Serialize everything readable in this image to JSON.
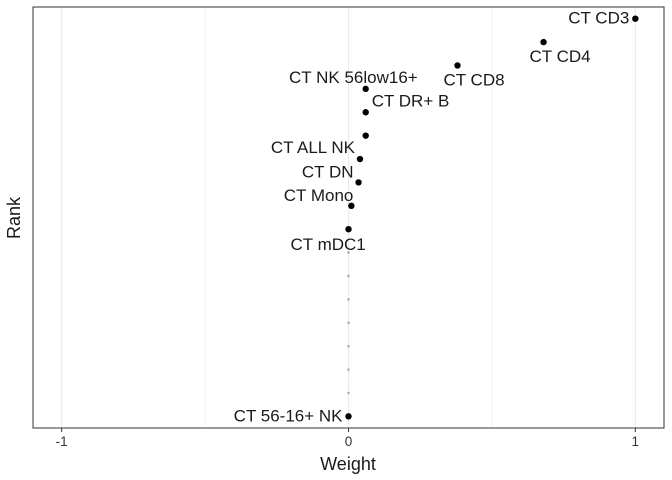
{
  "chart_data": {
    "type": "scatter",
    "xlabel": "Weight",
    "ylabel": "Rank",
    "xlim": [
      -1.1,
      1.1
    ],
    "ylim": [
      0.5,
      18.5
    ],
    "x_ticks": [
      {
        "value": -1,
        "label": "-1"
      },
      {
        "value": 0,
        "label": "0"
      },
      {
        "value": 1,
        "label": "1"
      }
    ],
    "grid": true,
    "points": [
      {
        "x": 1.0,
        "y": 18,
        "label": "CT CD3"
      },
      {
        "x": 0.68,
        "y": 17,
        "label": "CT CD4"
      },
      {
        "x": 0.38,
        "y": 16,
        "label": "CT CD8"
      },
      {
        "x": 0.06,
        "y": 15,
        "label": "CT NK 56low16+"
      },
      {
        "x": 0.06,
        "y": 14,
        "label": "CT DR+ B"
      },
      {
        "x": 0.06,
        "y": 13,
        "label": ""
      },
      {
        "x": 0.04,
        "y": 12,
        "label": "CT ALL NK"
      },
      {
        "x": 0.035,
        "y": 11,
        "label": "CT DN"
      },
      {
        "x": 0.01,
        "y": 10,
        "label": "CT Mono"
      },
      {
        "x": 0.0,
        "y": 9,
        "label": "CT mDC1"
      },
      {
        "x": 0.0,
        "y": 1,
        "label": "CT 56-16+ NK"
      }
    ],
    "minor_points": [
      {
        "x": 0.0,
        "y": 8
      },
      {
        "x": 0.0,
        "y": 7
      },
      {
        "x": 0.0,
        "y": 6
      },
      {
        "x": 0.0,
        "y": 5
      },
      {
        "x": 0.0,
        "y": 4
      },
      {
        "x": 0.0,
        "y": 3
      },
      {
        "x": 0.0,
        "y": 2
      }
    ],
    "colors": {
      "point": "#000000",
      "minor_point": "#b0b0b0",
      "grid": "#ebebeb",
      "border": "#333333"
    }
  }
}
